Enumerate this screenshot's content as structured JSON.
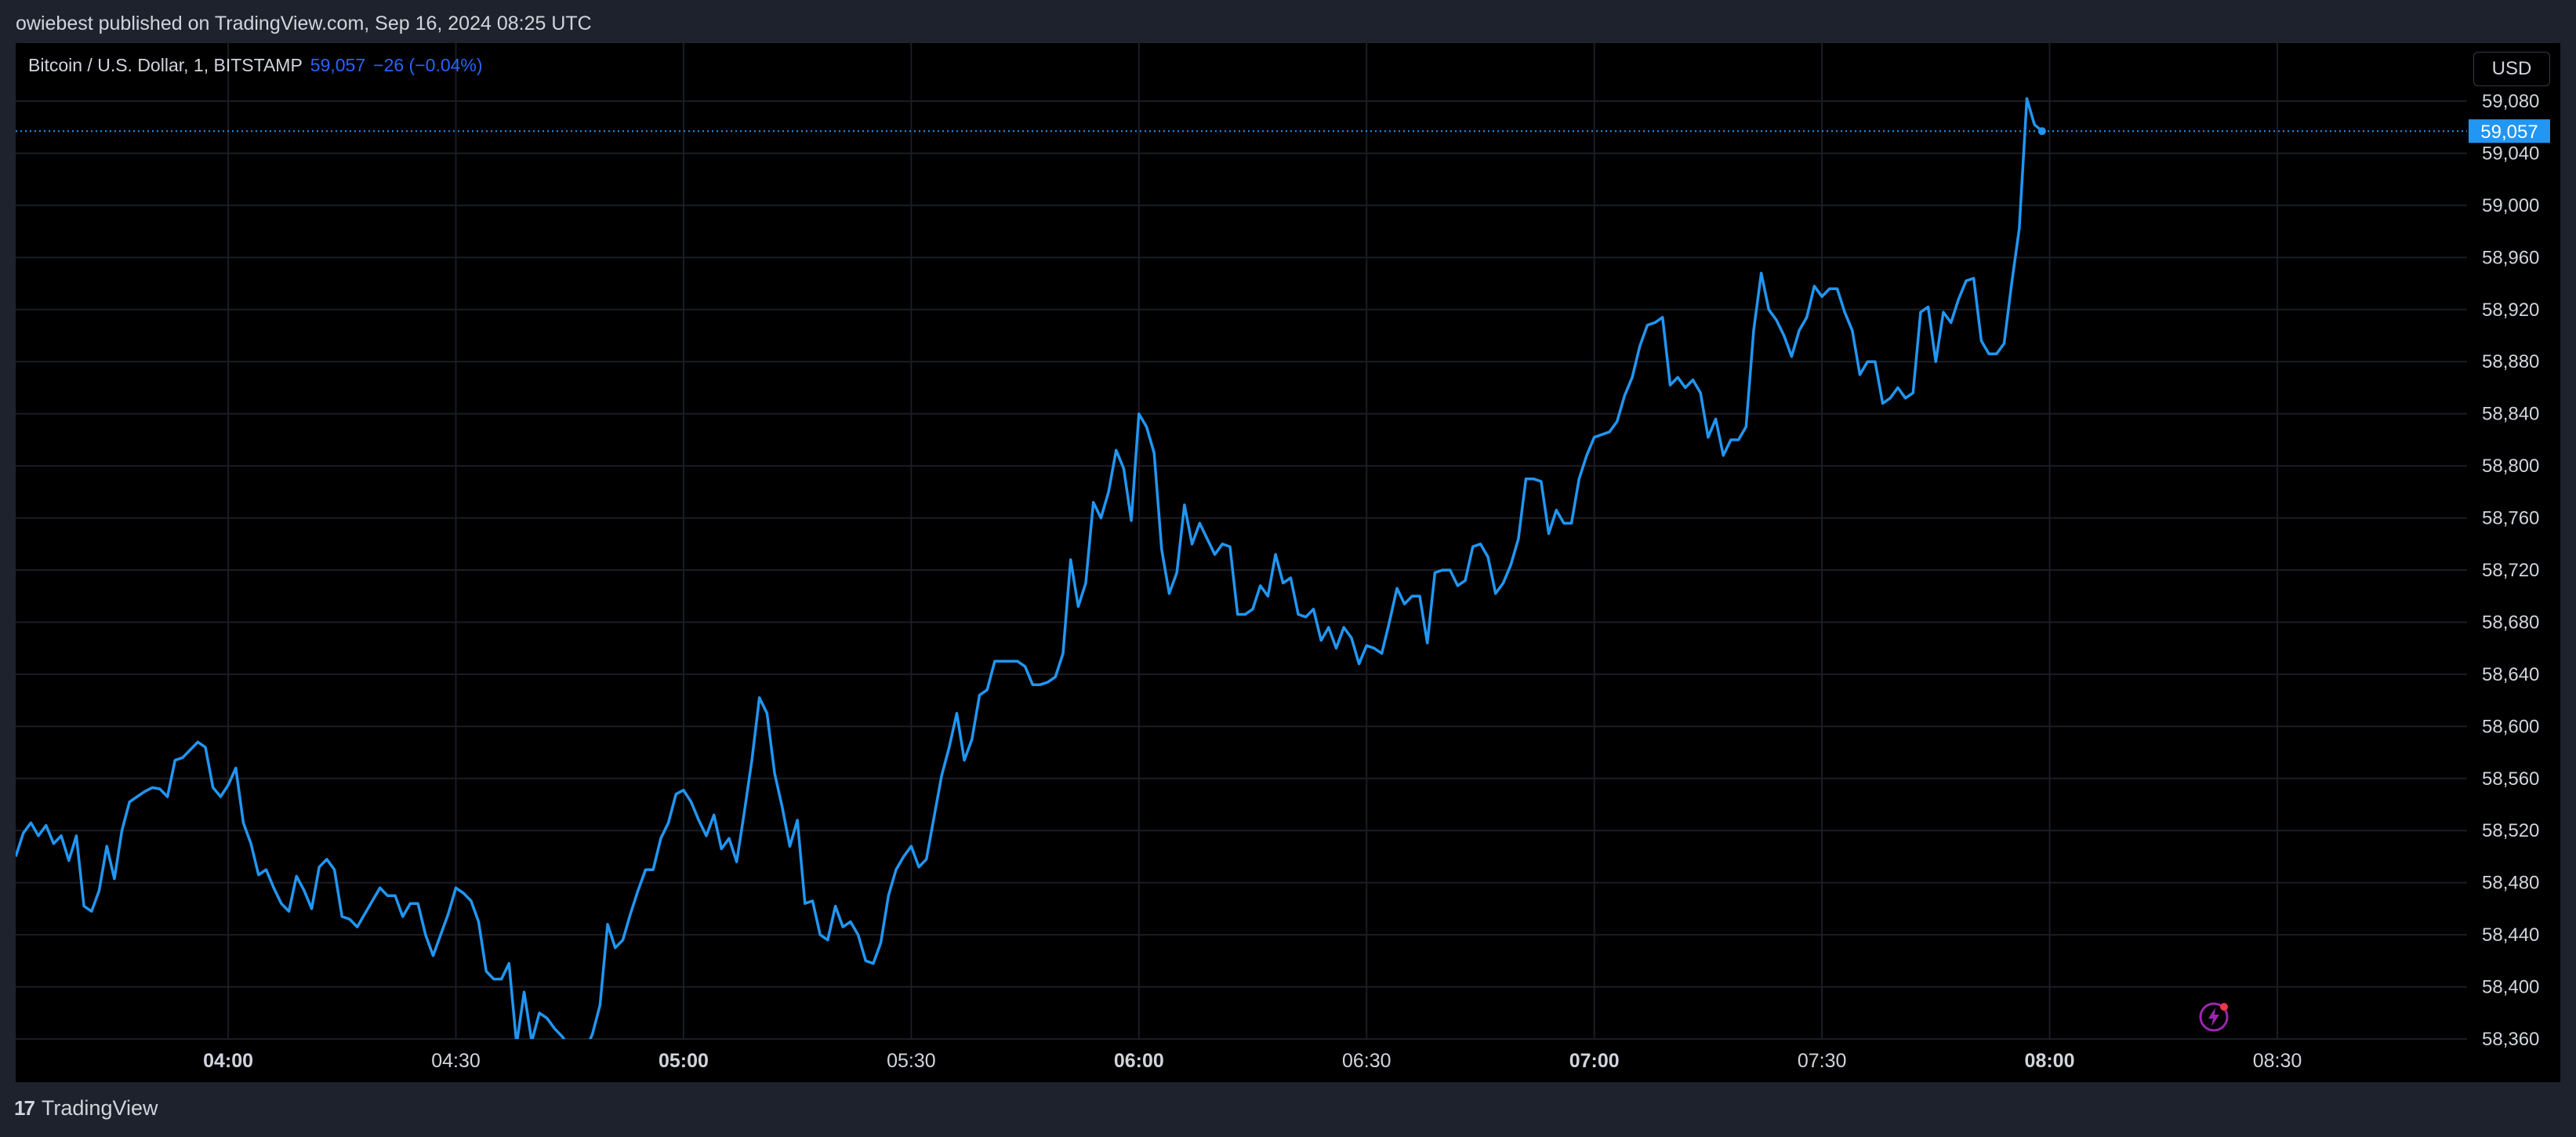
{
  "published_line": "owiebest published on TradingView.com, Sep 16, 2024 08:25 UTC",
  "legend": {
    "symbol": "Bitcoin / U.S. Dollar, 1, BITSTAMP",
    "last": "59,057",
    "change": "−26 (−0.04%)"
  },
  "currency_button": "USD",
  "price_tag": "59,057",
  "brand": "TradingView",
  "colors": {
    "line": "#2196f3",
    "background": "#000000",
    "frame": "#1e222d",
    "grid": "#1a1d25",
    "text": "#d1d4dc",
    "price_tag": "#2196f3"
  },
  "chart_data": {
    "type": "line",
    "x_tick_labels": [
      "04:00",
      "04:30",
      "05:00",
      "05:30",
      "06:00",
      "06:30",
      "07:00",
      "07:30",
      "08:00",
      "08:30"
    ],
    "x_tick_bold": [
      true,
      false,
      true,
      false,
      true,
      false,
      true,
      false,
      true,
      false
    ],
    "y_tick_labels": [
      "59,080",
      "59,040",
      "59,000",
      "58,960",
      "58,920",
      "58,880",
      "58,840",
      "58,800",
      "58,760",
      "58,720",
      "58,680",
      "58,640",
      "58,600",
      "58,560",
      "58,520",
      "58,480",
      "58,440",
      "58,400",
      "58,360"
    ],
    "ylim": [
      58350,
      59100
    ],
    "x_start": "03:32",
    "x_end": "08:55",
    "last_price": 59057,
    "series": [
      {
        "points": [
          [
            "03:32",
            58500
          ],
          [
            "03:33",
            58518
          ],
          [
            "03:34",
            58526
          ],
          [
            "03:35",
            58516
          ],
          [
            "03:36",
            58524
          ],
          [
            "03:37",
            58510
          ],
          [
            "03:38",
            58516
          ],
          [
            "03:39",
            58497
          ],
          [
            "03:40",
            58516
          ],
          [
            "03:41",
            58462
          ],
          [
            "03:42",
            58458
          ],
          [
            "03:43",
            58474
          ],
          [
            "03:44",
            58508
          ],
          [
            "03:45",
            58483
          ],
          [
            "03:46",
            58520
          ],
          [
            "03:47",
            58542
          ],
          [
            "03:48",
            58546
          ],
          [
            "03:49",
            58550
          ],
          [
            "03:50",
            58553
          ],
          [
            "03:51",
            58552
          ],
          [
            "03:52",
            58546
          ],
          [
            "03:53",
            58574
          ],
          [
            "03:54",
            58576
          ],
          [
            "03:55",
            58582
          ],
          [
            "03:56",
            58588
          ],
          [
            "03:57",
            58584
          ],
          [
            "03:58",
            58553
          ],
          [
            "03:59",
            58546
          ],
          [
            "04:00",
            58555
          ],
          [
            "04:01",
            58568
          ],
          [
            "04:02",
            58526
          ],
          [
            "04:03",
            58510
          ],
          [
            "04:04",
            58486
          ],
          [
            "04:05",
            58490
          ],
          [
            "04:06",
            58476
          ],
          [
            "04:07",
            58464
          ],
          [
            "04:08",
            58458
          ],
          [
            "04:09",
            58485
          ],
          [
            "04:10",
            58474
          ],
          [
            "04:11",
            58460
          ],
          [
            "04:12",
            58492
          ],
          [
            "04:13",
            58498
          ],
          [
            "04:14",
            58490
          ],
          [
            "04:15",
            58454
          ],
          [
            "04:16",
            58452
          ],
          [
            "04:17",
            58446
          ],
          [
            "04:18",
            58456
          ],
          [
            "04:19",
            58466
          ],
          [
            "04:20",
            58476
          ],
          [
            "04:21",
            58470
          ],
          [
            "04:22",
            58470
          ],
          [
            "04:23",
            58454
          ],
          [
            "04:24",
            58464
          ],
          [
            "04:25",
            58464
          ],
          [
            "04:26",
            58440
          ],
          [
            "04:27",
            58424
          ],
          [
            "04:28",
            58440
          ],
          [
            "04:29",
            58456
          ],
          [
            "04:30",
            58476
          ],
          [
            "04:31",
            58472
          ],
          [
            "04:32",
            58466
          ],
          [
            "04:33",
            58450
          ],
          [
            "04:34",
            58412
          ],
          [
            "04:35",
            58406
          ],
          [
            "04:36",
            58406
          ],
          [
            "04:37",
            58418
          ],
          [
            "04:38",
            58356
          ],
          [
            "04:39",
            58396
          ],
          [
            "04:40",
            58358
          ],
          [
            "04:41",
            58380
          ],
          [
            "04:42",
            58376
          ],
          [
            "04:43",
            58368
          ],
          [
            "04:44",
            58362
          ],
          [
            "04:45",
            58354
          ],
          [
            "04:46",
            58340
          ],
          [
            "04:47",
            58350
          ],
          [
            "04:48",
            58364
          ],
          [
            "04:49",
            58386
          ],
          [
            "04:50",
            58448
          ],
          [
            "04:51",
            58430
          ],
          [
            "04:52",
            58436
          ],
          [
            "04:53",
            58456
          ],
          [
            "04:54",
            58474
          ],
          [
            "04:55",
            58490
          ],
          [
            "04:56",
            58490
          ],
          [
            "04:57",
            58514
          ],
          [
            "04:58",
            58526
          ],
          [
            "04:59",
            58548
          ],
          [
            "05:00",
            58551
          ],
          [
            "05:01",
            58542
          ],
          [
            "05:02",
            58528
          ],
          [
            "05:03",
            58516
          ],
          [
            "05:04",
            58532
          ],
          [
            "05:05",
            58506
          ],
          [
            "05:06",
            58514
          ],
          [
            "05:07",
            58496
          ],
          [
            "05:08",
            58534
          ],
          [
            "05:09",
            58574
          ],
          [
            "05:10",
            58622
          ],
          [
            "05:11",
            58610
          ],
          [
            "05:12",
            58564
          ],
          [
            "05:13",
            58538
          ],
          [
            "05:14",
            58508
          ],
          [
            "05:15",
            58528
          ],
          [
            "05:16",
            58464
          ],
          [
            "05:17",
            58466
          ],
          [
            "05:18",
            58440
          ],
          [
            "05:19",
            58436
          ],
          [
            "05:20",
            58462
          ],
          [
            "05:21",
            58446
          ],
          [
            "05:22",
            58450
          ],
          [
            "05:23",
            58440
          ],
          [
            "05:24",
            58420
          ],
          [
            "05:25",
            58418
          ],
          [
            "05:26",
            58434
          ],
          [
            "05:27",
            58470
          ],
          [
            "05:28",
            58490
          ],
          [
            "05:29",
            58500
          ],
          [
            "05:30",
            58508
          ],
          [
            "05:31",
            58492
          ],
          [
            "05:32",
            58498
          ],
          [
            "05:33",
            58530
          ],
          [
            "05:34",
            58562
          ],
          [
            "05:35",
            58584
          ],
          [
            "05:36",
            58610
          ],
          [
            "05:37",
            58574
          ],
          [
            "05:38",
            58590
          ],
          [
            "05:39",
            58624
          ],
          [
            "05:40",
            58628
          ],
          [
            "05:41",
            58650
          ],
          [
            "05:42",
            58650
          ],
          [
            "05:43",
            58650
          ],
          [
            "05:44",
            58650
          ],
          [
            "05:45",
            58646
          ],
          [
            "05:46",
            58632
          ],
          [
            "05:47",
            58632
          ],
          [
            "05:48",
            58634
          ],
          [
            "05:49",
            58638
          ],
          [
            "05:50",
            58656
          ],
          [
            "05:51",
            58728
          ],
          [
            "05:52",
            58692
          ],
          [
            "05:53",
            58710
          ],
          [
            "05:54",
            58772
          ],
          [
            "05:55",
            58760
          ],
          [
            "05:56",
            58780
          ],
          [
            "05:57",
            58812
          ],
          [
            "05:58",
            58798
          ],
          [
            "05:59",
            58758
          ],
          [
            "06:00",
            58840
          ],
          [
            "06:01",
            58830
          ],
          [
            "06:02",
            58810
          ],
          [
            "06:03",
            58736
          ],
          [
            "06:04",
            58702
          ],
          [
            "06:05",
            58718
          ],
          [
            "06:06",
            58770
          ],
          [
            "06:07",
            58740
          ],
          [
            "06:08",
            58756
          ],
          [
            "06:09",
            58744
          ],
          [
            "06:10",
            58732
          ],
          [
            "06:11",
            58740
          ],
          [
            "06:12",
            58738
          ],
          [
            "06:13",
            58686
          ],
          [
            "06:14",
            58686
          ],
          [
            "06:15",
            58690
          ],
          [
            "06:16",
            58708
          ],
          [
            "06:17",
            58700
          ],
          [
            "06:18",
            58732
          ],
          [
            "06:19",
            58710
          ],
          [
            "06:20",
            58714
          ],
          [
            "06:21",
            58686
          ],
          [
            "06:22",
            58684
          ],
          [
            "06:23",
            58690
          ],
          [
            "06:24",
            58666
          ],
          [
            "06:25",
            58676
          ],
          [
            "06:26",
            58660
          ],
          [
            "06:27",
            58676
          ],
          [
            "06:28",
            58668
          ],
          [
            "06:29",
            58648
          ],
          [
            "06:30",
            58662
          ],
          [
            "06:31",
            58660
          ],
          [
            "06:32",
            58656
          ],
          [
            "06:33",
            58680
          ],
          [
            "06:34",
            58706
          ],
          [
            "06:35",
            58694
          ],
          [
            "06:36",
            58700
          ],
          [
            "06:37",
            58700
          ],
          [
            "06:38",
            58664
          ],
          [
            "06:39",
            58718
          ],
          [
            "06:40",
            58720
          ],
          [
            "06:41",
            58720
          ],
          [
            "06:42",
            58708
          ],
          [
            "06:43",
            58712
          ],
          [
            "06:44",
            58738
          ],
          [
            "06:45",
            58740
          ],
          [
            "06:46",
            58730
          ],
          [
            "06:47",
            58702
          ],
          [
            "06:48",
            58710
          ],
          [
            "06:49",
            58724
          ],
          [
            "06:50",
            58744
          ],
          [
            "06:51",
            58790
          ],
          [
            "06:52",
            58790
          ],
          [
            "06:53",
            58788
          ],
          [
            "06:54",
            58748
          ],
          [
            "06:55",
            58766
          ],
          [
            "06:56",
            58756
          ],
          [
            "06:57",
            58756
          ],
          [
            "06:58",
            58790
          ],
          [
            "06:59",
            58808
          ],
          [
            "07:00",
            58822
          ],
          [
            "07:01",
            58824
          ],
          [
            "07:02",
            58826
          ],
          [
            "07:03",
            58834
          ],
          [
            "07:04",
            58854
          ],
          [
            "07:05",
            58868
          ],
          [
            "07:06",
            58892
          ],
          [
            "07:07",
            58908
          ],
          [
            "07:08",
            58910
          ],
          [
            "07:09",
            58914
          ],
          [
            "07:10",
            58862
          ],
          [
            "07:11",
            58868
          ],
          [
            "07:12",
            58860
          ],
          [
            "07:13",
            58866
          ],
          [
            "07:14",
            58856
          ],
          [
            "07:15",
            58822
          ],
          [
            "07:16",
            58836
          ],
          [
            "07:17",
            58808
          ],
          [
            "07:18",
            58820
          ],
          [
            "07:19",
            58820
          ],
          [
            "07:20",
            58830
          ],
          [
            "07:21",
            58904
          ],
          [
            "07:22",
            58948
          ],
          [
            "07:23",
            58920
          ],
          [
            "07:24",
            58912
          ],
          [
            "07:25",
            58900
          ],
          [
            "07:26",
            58884
          ],
          [
            "07:27",
            58904
          ],
          [
            "07:28",
            58914
          ],
          [
            "07:29",
            58938
          ],
          [
            "07:30",
            58930
          ],
          [
            "07:31",
            58936
          ],
          [
            "07:32",
            58936
          ],
          [
            "07:33",
            58918
          ],
          [
            "07:34",
            58904
          ],
          [
            "07:35",
            58870
          ],
          [
            "07:36",
            58880
          ],
          [
            "07:37",
            58880
          ],
          [
            "07:38",
            58848
          ],
          [
            "07:39",
            58852
          ],
          [
            "07:40",
            58860
          ],
          [
            "07:41",
            58852
          ],
          [
            "07:42",
            58856
          ],
          [
            "07:43",
            58918
          ],
          [
            "07:44",
            58922
          ],
          [
            "07:45",
            58880
          ],
          [
            "07:46",
            58918
          ],
          [
            "07:47",
            58910
          ],
          [
            "07:48",
            58928
          ],
          [
            "07:49",
            58942
          ],
          [
            "07:50",
            58944
          ],
          [
            "07:51",
            58896
          ],
          [
            "07:52",
            58886
          ],
          [
            "07:53",
            58886
          ],
          [
            "07:54",
            58894
          ],
          [
            "07:55",
            58940
          ],
          [
            "07:56",
            58982
          ],
          [
            "07:57",
            59082
          ],
          [
            "07:58",
            59062
          ],
          [
            "07:59",
            59057
          ]
        ]
      }
    ]
  }
}
